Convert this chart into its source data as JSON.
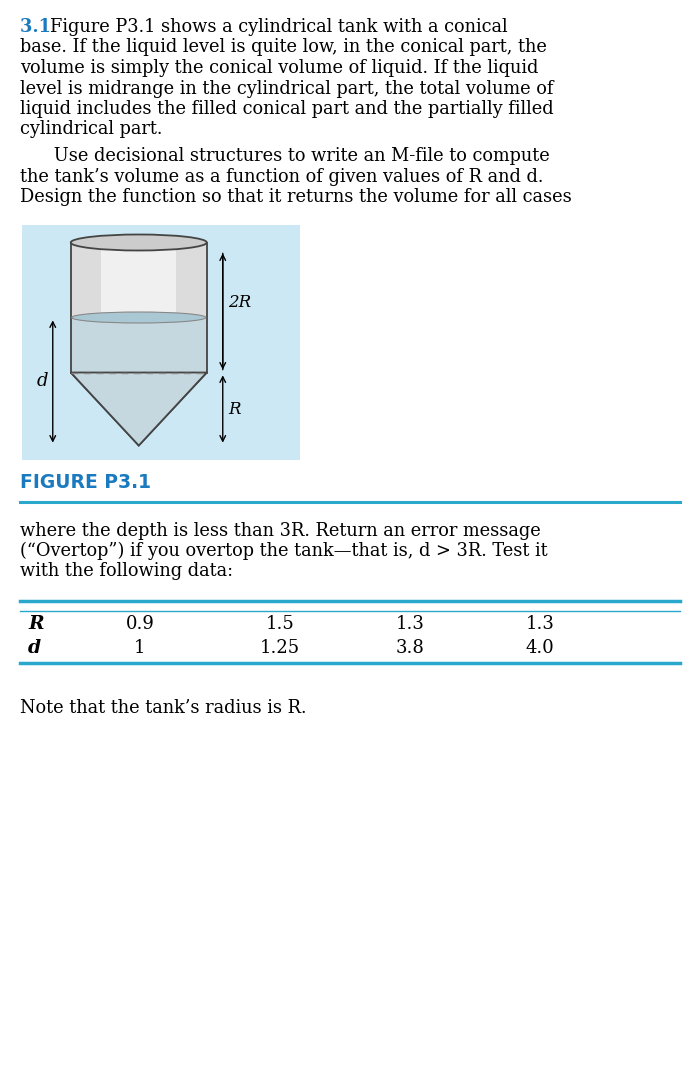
{
  "title_number": "3.1",
  "title_number_color": "#1a7abf",
  "figure_caption": "FIGURE P3.1",
  "figure_caption_color": "#1a7abf",
  "note_text": "Note that the tank’s radius is R.",
  "table_R_values": [
    "0.9",
    "1.5",
    "1.3",
    "1.3"
  ],
  "table_d_values": [
    "1",
    "1.25",
    "3.8",
    "4.0"
  ],
  "label_2R": "2R",
  "label_R": "R",
  "label_d": "d",
  "bg_color": "#ffffff",
  "figure_bg_color": "#cce8f4",
  "cyan_line_color": "#29a8cc",
  "body_text_color": "#000000",
  "lines_p1": [
    "Figure P3.1 shows a cylindrical tank with a conical",
    "base. If the liquid level is quite low, in the conical part, the",
    "volume is simply the conical volume of liquid. If the liquid",
    "level is midrange in the cylindrical part, the total volume of",
    "liquid includes the filled conical part and the partially filled",
    "cylindrical part."
  ],
  "lines_p2": [
    "      Use decisional structures to write an M-file to compute",
    "the tank’s volume as a function of given values of R and d.",
    "Design the function so that it returns the volume for all cases"
  ],
  "lines_p3": [
    "where the depth is less than 3R. Return an error message",
    "(“Overtop”) if you overtop the tank—that is, d > 3R. Test it",
    "with the following data:"
  ]
}
